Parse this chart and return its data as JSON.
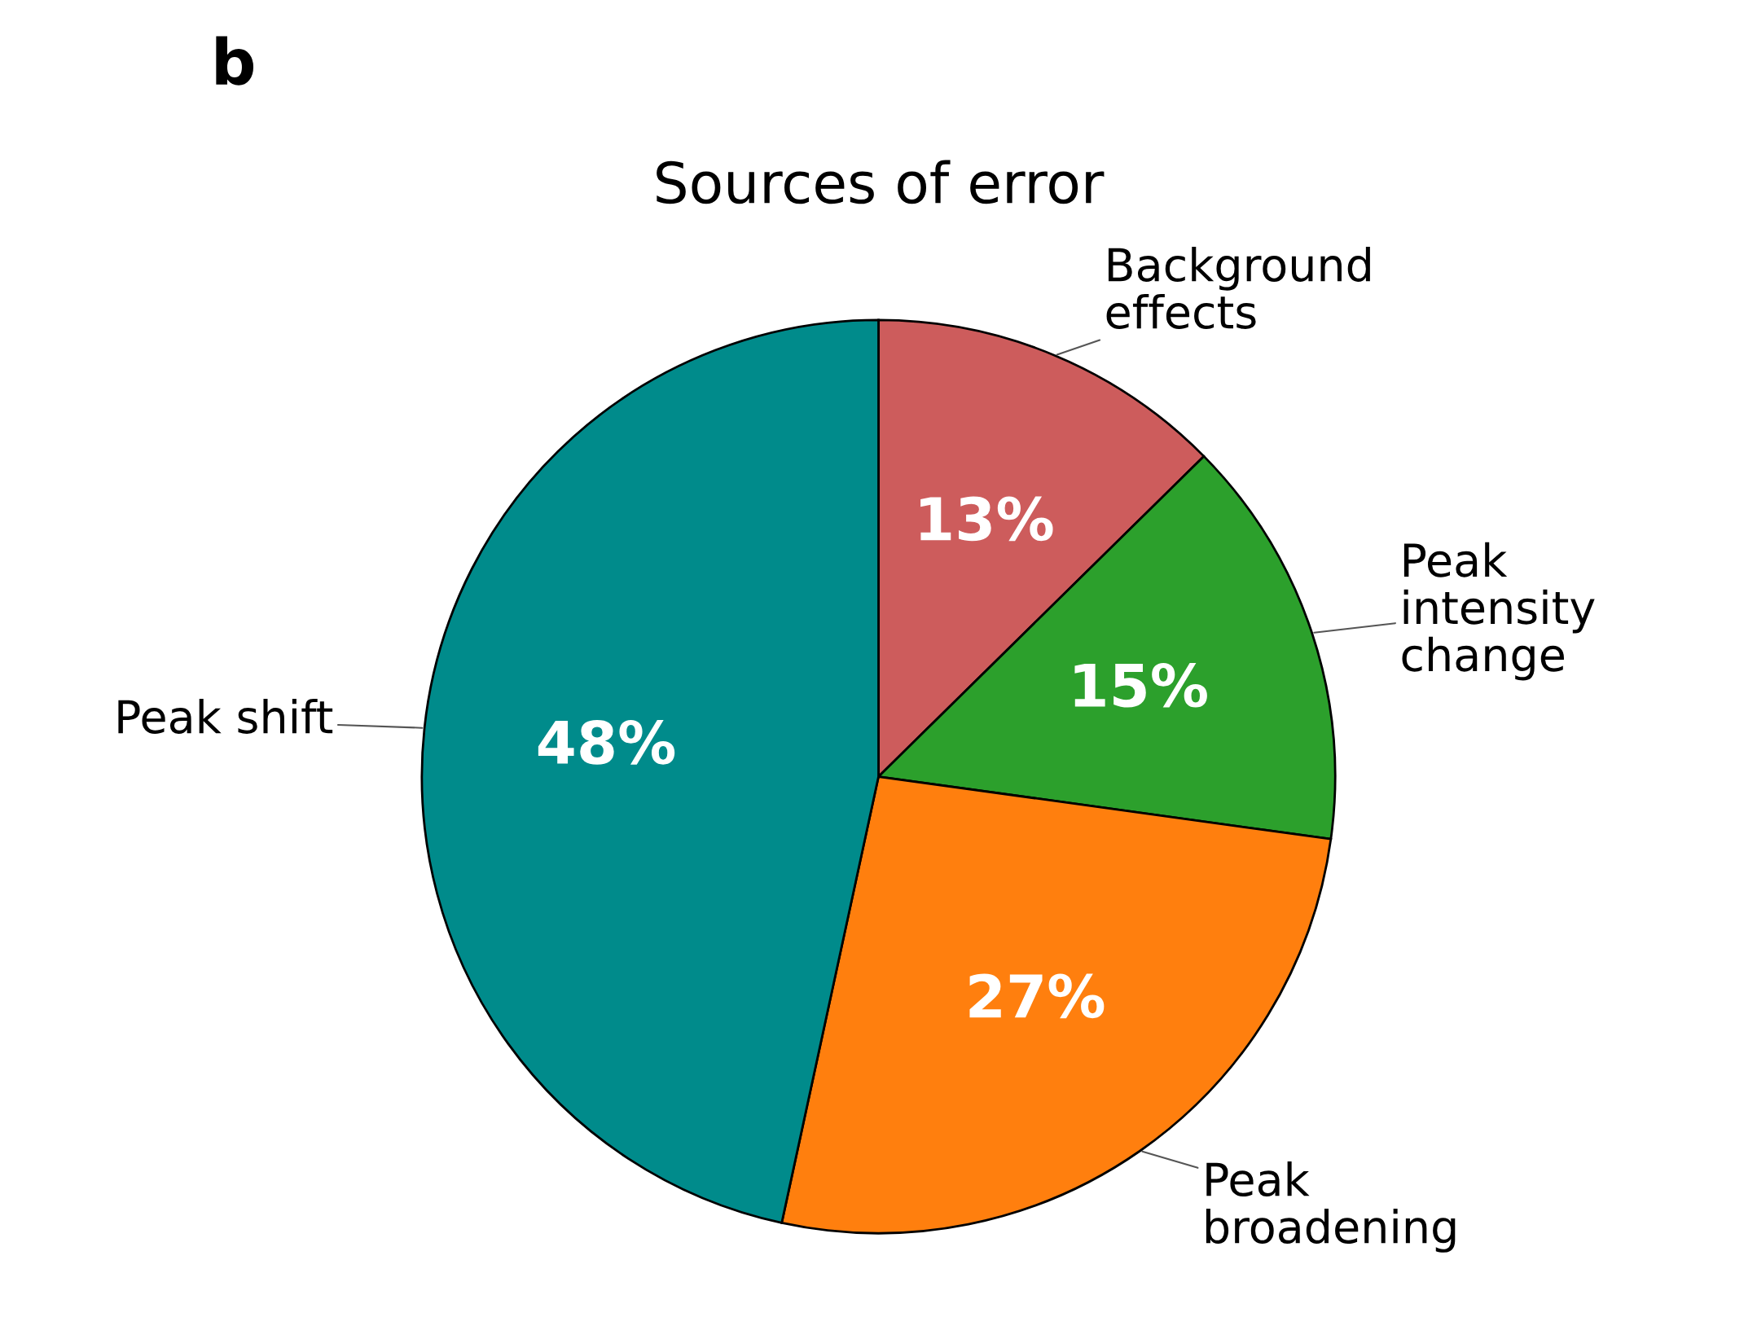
{
  "chart_data": {
    "type": "pie",
    "title": "Sources of error",
    "categories": [
      "Background\neffects",
      "Peak\nintensity\nchange",
      "Peak\nbroadening",
      "Peak shift"
    ],
    "values": [
      13,
      15,
      27,
      48
    ],
    "colors": [
      "#cd5c5c",
      "#2ca02c",
      "#ff7f0e",
      "#008b8b"
    ],
    "value_labels": [
      "13%",
      "15%",
      "27%",
      "48%"
    ],
    "annotations": [
      "b"
    ]
  }
}
